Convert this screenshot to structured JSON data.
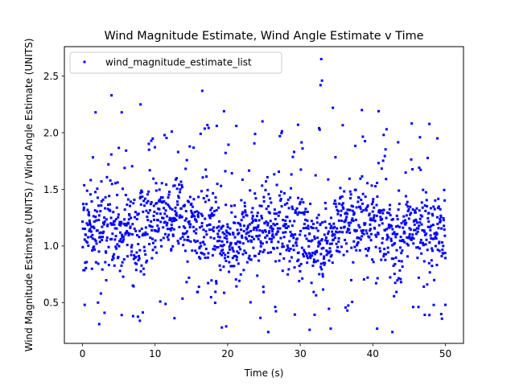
{
  "chart_data": {
    "type": "scatter",
    "title": "Wind Magnitude Estimate, Wind Angle Estimate v Time",
    "xlabel": "Time (s)",
    "ylabel": "Wind Magnitude Estimate (UNITS) / Wind Angle Estimate (UNITS)",
    "xlim": [
      -2.5,
      52.5
    ],
    "ylim": [
      0.14,
      2.76
    ],
    "xticks": [
      0,
      10,
      20,
      30,
      40,
      50
    ],
    "xtick_labels": [
      "0",
      "10",
      "20",
      "30",
      "40",
      "50"
    ],
    "yticks": [
      0.5,
      1.0,
      1.5,
      2.0,
      2.5
    ],
    "ytick_labels": [
      "0.5",
      "1.0",
      "1.5",
      "2.0",
      "2.5"
    ],
    "grid": false,
    "legend_position": "upper-left",
    "series": [
      {
        "name": "wind_magnitude_estimate_list",
        "color": "#0000ff",
        "marker": "square",
        "n_points": 1500,
        "x_range": [
          0,
          50
        ],
        "notable_points": [
          [
            32.9,
            2.65
          ],
          [
            33.0,
            2.46
          ],
          [
            32.8,
            2.42
          ],
          [
            4.0,
            2.33
          ],
          [
            16.5,
            2.37
          ],
          [
            8.0,
            2.25
          ],
          [
            34.5,
            2.22
          ],
          [
            38.5,
            2.2
          ],
          [
            40.8,
            2.19
          ],
          [
            19.5,
            2.19
          ],
          [
            1.8,
            2.18
          ],
          [
            5.4,
            2.18
          ],
          [
            24.8,
            2.1
          ],
          [
            29.7,
            2.07
          ],
          [
            18.5,
            2.06
          ],
          [
            21.2,
            2.06
          ],
          [
            32.6,
            2.04
          ],
          [
            12.3,
            2.01
          ],
          [
            41.5,
            1.98
          ],
          [
            27.2,
            1.97
          ],
          [
            46.5,
            1.96
          ],
          [
            48.9,
            1.95
          ],
          [
            0.3,
            0.48
          ],
          [
            2.3,
            0.31
          ],
          [
            5.4,
            0.39
          ],
          [
            7.9,
            0.34
          ],
          [
            19.2,
            0.28
          ],
          [
            19.8,
            0.29
          ],
          [
            25.6,
            0.24
          ],
          [
            31.3,
            0.26
          ],
          [
            42.7,
            0.24
          ],
          [
            40.6,
            0.27
          ],
          [
            34.2,
            0.27
          ],
          [
            47.8,
            0.39
          ],
          [
            50.0,
            0.48
          ],
          [
            36.5,
            0.43
          ]
        ],
        "profile_t": [
          0,
          3,
          6,
          10,
          13,
          16,
          20,
          24,
          27,
          30,
          33,
          36,
          40,
          43,
          46,
          50
        ],
        "profile_center": [
          1.12,
          1.22,
          1.08,
          1.25,
          1.32,
          1.2,
          1.02,
          1.15,
          1.2,
          1.08,
          0.95,
          1.22,
          1.2,
          1.1,
          1.15,
          1.12
        ],
        "profile_spread": [
          0.3,
          0.32,
          0.32,
          0.3,
          0.28,
          0.3,
          0.32,
          0.3,
          0.28,
          0.3,
          0.32,
          0.27,
          0.27,
          0.28,
          0.27,
          0.28
        ],
        "outlier_rate": 0.08
      }
    ]
  }
}
